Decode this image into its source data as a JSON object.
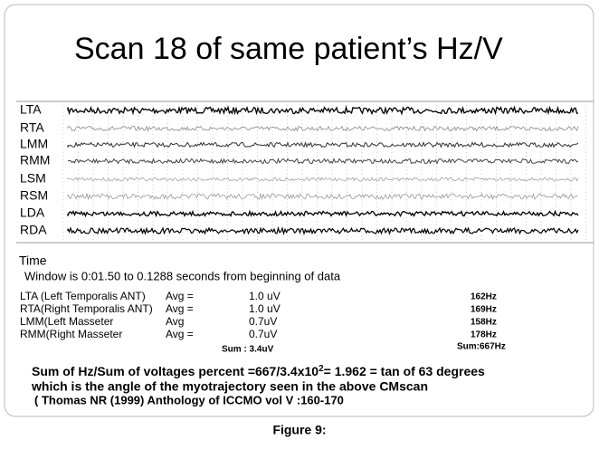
{
  "figure": {
    "title": "Scan 18 of same patient’s Hz/V",
    "channels": [
      "LTA",
      "RTA",
      "LMM",
      "RMM",
      "LSM",
      "RSM",
      "LDA",
      "RDA"
    ],
    "time_label": "Time",
    "window_text": "Window  is  0:01.50 to 0.1288 seconds from beginning of data",
    "rows": [
      [
        "LTA (Left Temporalis ANT)",
        "Avg =",
        "1.0 uV",
        "162Hz"
      ],
      [
        "RTA(Right Temporalis ANT)",
        "Avg =",
        "1.0 uV",
        "169Hz"
      ],
      [
        "LMM(Left  Masseter",
        "Avg",
        "0.7uV",
        "158Hz"
      ],
      [
        "RMM(Right Masseter",
        "Avg =",
        "0.7uV",
        "178Hz"
      ]
    ],
    "sum_voltage": "Sum  : 3.4uV",
    "sum_hz": "Sum:667Hz",
    "formula": {
      "main": "Sum of Hz/Sum of voltages percent   =667/3.4x10",
      "exponent": "2",
      "rest": "= 1.962 = tan of 63 degrees"
    },
    "line2": "which is the angle of the myotrajectory seen in the above CMscan",
    "line3": "( Thomas NR (1999) Anthology of ICCMO vol V :160-170",
    "caption": "Figure 9:"
  }
}
